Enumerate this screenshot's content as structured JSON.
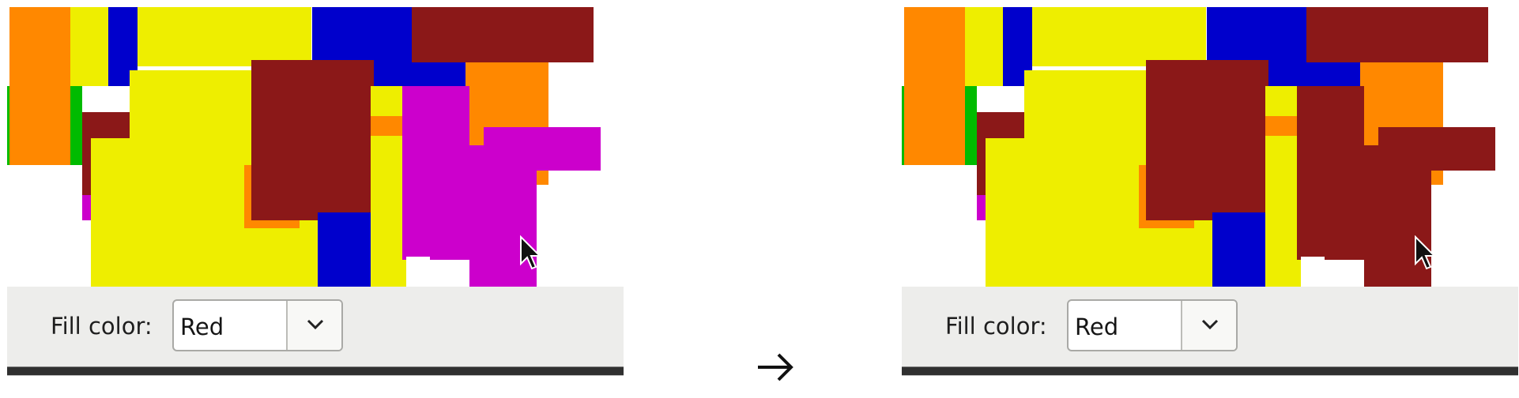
{
  "fill_color_label": "Fill color:",
  "before": {
    "selected": "Red"
  },
  "after": {
    "selected": "Red"
  },
  "icons": {
    "dropdown": "chevron-down-icon",
    "cursor": "mouse-pointer-icon",
    "transition": "right-arrow-icon"
  },
  "colors": {
    "orange": "#ff8800",
    "yellow": "#eeee00",
    "blue": "#0000cc",
    "dark_red": "#8b1818",
    "magenta": "#cc00cc",
    "green": "#00bb00",
    "toolbar_bg": "#ededeb"
  }
}
